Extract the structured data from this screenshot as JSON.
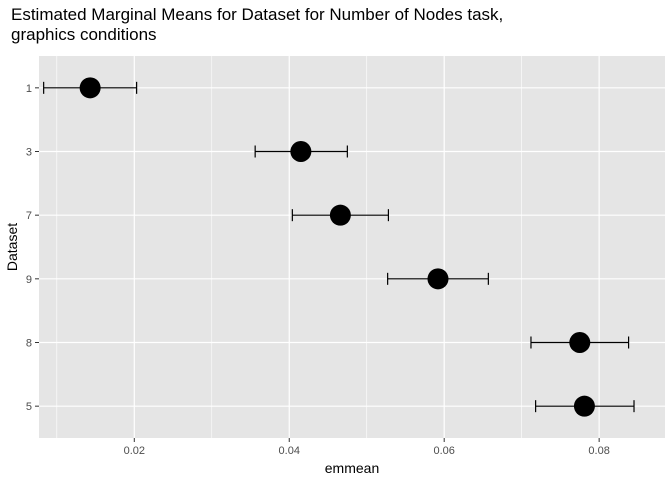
{
  "chart_data": {
    "type": "scatter",
    "title": "Estimated Marginal Means for Dataset for Number of Nodes task,",
    "subtitle": "graphics conditions",
    "xlabel": "emmean",
    "ylabel": "Dataset",
    "xlim": [
      0.0077,
      0.0885
    ],
    "x_ticks": [
      0.02,
      0.04,
      0.06,
      0.08
    ],
    "x_tick_labels": [
      "0.02",
      "0.04",
      "0.06",
      "0.08"
    ],
    "categories": [
      "1",
      "3",
      "7",
      "9",
      "8",
      "5"
    ],
    "points": [
      {
        "dataset": "1",
        "emmean": 0.0143,
        "lower": 0.0083,
        "upper": 0.0203
      },
      {
        "dataset": "3",
        "emmean": 0.0415,
        "lower": 0.0356,
        "upper": 0.0475
      },
      {
        "dataset": "7",
        "emmean": 0.0466,
        "lower": 0.0404,
        "upper": 0.0528
      },
      {
        "dataset": "9",
        "emmean": 0.0592,
        "lower": 0.0527,
        "upper": 0.0657
      },
      {
        "dataset": "8",
        "emmean": 0.0775,
        "lower": 0.0712,
        "upper": 0.0838
      },
      {
        "dataset": "5",
        "emmean": 0.0781,
        "lower": 0.0718,
        "upper": 0.0845
      }
    ],
    "grid": true,
    "legend": "none",
    "colors": {
      "panel": "#e5e5e5",
      "grid_major": "#ffffff",
      "point": "#000000"
    }
  }
}
